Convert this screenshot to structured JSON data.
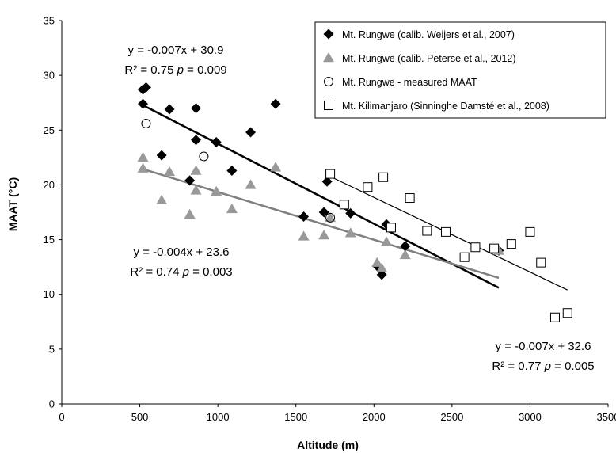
{
  "chart_data": {
    "type": "scatter",
    "xlabel": "Altitude (m)",
    "ylabel": "MAAT (°C)",
    "xlim": [
      0,
      3500
    ],
    "ylim": [
      0,
      35
    ],
    "x_ticks": [
      "0",
      "500",
      "1000",
      "1500",
      "2000",
      "2500",
      "3000",
      "3500"
    ],
    "y_ticks": [
      "0",
      "5",
      "10",
      "15",
      "20",
      "25",
      "30",
      "35"
    ],
    "grid": false,
    "legend_position": "top-right",
    "series": [
      {
        "name": "Mt. Rungwe (calib. Weijers et al., 2007)",
        "marker": "diamond",
        "color": "#000000",
        "points": [
          [
            520,
            28.7
          ],
          [
            540,
            28.9
          ],
          [
            520,
            27.4
          ],
          [
            640,
            22.7
          ],
          [
            690,
            26.9
          ],
          [
            820,
            20.4
          ],
          [
            860,
            27.0
          ],
          [
            860,
            24.1
          ],
          [
            990,
            23.9
          ],
          [
            1090,
            21.3
          ],
          [
            1210,
            24.8
          ],
          [
            1370,
            27.4
          ],
          [
            1550,
            17.1
          ],
          [
            1680,
            17.5
          ],
          [
            1700,
            20.3
          ],
          [
            1850,
            17.4
          ],
          [
            2020,
            12.6
          ],
          [
            2050,
            11.8
          ],
          [
            2080,
            16.4
          ],
          [
            2200,
            14.4
          ],
          [
            2800,
            14.0
          ]
        ]
      },
      {
        "name": "Mt. Rungwe (calib. Peterse et al., 2012)",
        "marker": "triangle",
        "color": "#999999",
        "points": [
          [
            520,
            22.5
          ],
          [
            520,
            21.5
          ],
          [
            640,
            18.6
          ],
          [
            690,
            21.2
          ],
          [
            820,
            17.3
          ],
          [
            860,
            21.3
          ],
          [
            860,
            19.5
          ],
          [
            990,
            19.4
          ],
          [
            1090,
            17.8
          ],
          [
            1210,
            20.0
          ],
          [
            1370,
            21.6
          ],
          [
            1550,
            15.3
          ],
          [
            1680,
            15.4
          ],
          [
            1720,
            17.0
          ],
          [
            1850,
            15.6
          ],
          [
            2020,
            12.9
          ],
          [
            2050,
            12.4
          ],
          [
            2080,
            14.8
          ],
          [
            2200,
            13.6
          ],
          [
            2800,
            14.0
          ]
        ]
      },
      {
        "name": "Mt. Rungwe - measured MAAT",
        "marker": "circle",
        "color": "#000000",
        "points": [
          [
            540,
            25.6
          ],
          [
            910,
            22.6
          ],
          [
            1720,
            17.0
          ]
        ]
      },
      {
        "name": "Mt. Kilimanjaro (Sinninghe Damsté et al., 2008)",
        "marker": "square",
        "color": "#000000",
        "points": [
          [
            1720,
            21.0
          ],
          [
            1810,
            18.2
          ],
          [
            1960,
            19.8
          ],
          [
            2060,
            20.7
          ],
          [
            2110,
            16.1
          ],
          [
            2230,
            18.8
          ],
          [
            2340,
            15.8
          ],
          [
            2460,
            15.7
          ],
          [
            2580,
            13.4
          ],
          [
            2650,
            14.3
          ],
          [
            2770,
            14.2
          ],
          [
            2880,
            14.6
          ],
          [
            3000,
            15.7
          ],
          [
            3070,
            12.9
          ],
          [
            3160,
            7.9
          ],
          [
            3240,
            8.3
          ]
        ]
      }
    ],
    "trendlines": [
      {
        "color": "#000000",
        "width": 2.5,
        "x": [
          530,
          2800
        ],
        "y": [
          27.2,
          10.6
        ]
      },
      {
        "color": "#7f7f7f",
        "width": 2.5,
        "x": [
          530,
          2800
        ],
        "y": [
          21.4,
          11.5
        ]
      },
      {
        "color": "#000000",
        "width": 1.2,
        "x": [
          1700,
          3240
        ],
        "y": [
          20.9,
          10.4
        ]
      }
    ],
    "annotations": [
      {
        "line1": "y = -0.007x + 30.9",
        "line2_pre": "R² = 0.75  ",
        "line2_p": "p",
        "line2_post": " = 0.009"
      },
      {
        "line1": "y = -0.004x + 23.6",
        "line2_pre": "R² = 0.74  ",
        "line2_p": "p",
        "line2_post": " = 0.003"
      },
      {
        "line1": "y = -0.007x + 32.6",
        "line2_pre": "R² = 0.77  ",
        "line2_p": "p",
        "line2_post": " = 0.005"
      }
    ]
  }
}
